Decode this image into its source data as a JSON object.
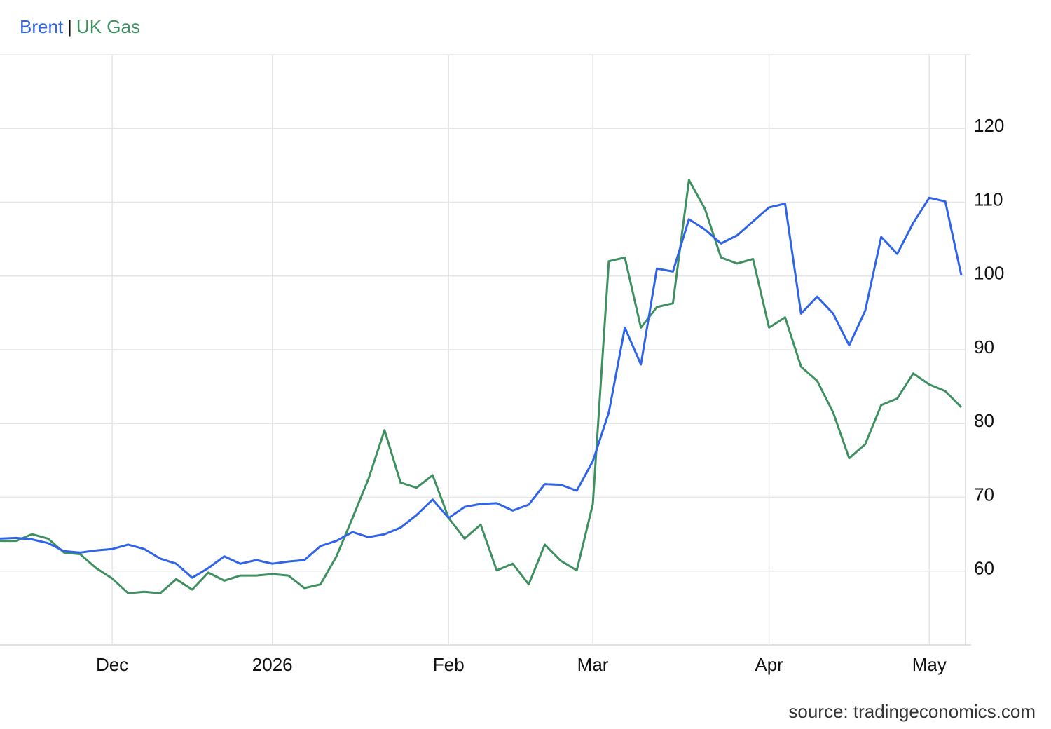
{
  "chart_data": {
    "type": "line",
    "legend_separator": "|",
    "source": "source: tradingeconomics.com",
    "categories": [
      null,
      null,
      null,
      null,
      null,
      null,
      null,
      "Dec",
      null,
      null,
      null,
      null,
      null,
      null,
      null,
      null,
      null,
      "2026",
      null,
      null,
      null,
      null,
      null,
      null,
      null,
      null,
      null,
      null,
      "Feb",
      null,
      null,
      null,
      null,
      null,
      null,
      null,
      null,
      "Mar",
      null,
      null,
      null,
      null,
      null,
      null,
      null,
      null,
      null,
      null,
      "Apr",
      null,
      null,
      null,
      null,
      null,
      null,
      null,
      null,
      null,
      "May",
      null,
      null
    ],
    "series": [
      {
        "name": "Brent",
        "color": "#2f63ea",
        "values": [
          64.4,
          64.5,
          64.3,
          63.8,
          62.7,
          62.5,
          62.8,
          63.0,
          63.6,
          63.0,
          61.7,
          61.0,
          59.1,
          60.4,
          62.0,
          61.0,
          61.5,
          61.0,
          61.3,
          61.5,
          63.4,
          64.1,
          65.3,
          64.6,
          65.0,
          65.9,
          67.6,
          69.7,
          67.2,
          68.7,
          69.1,
          69.2,
          68.2,
          69.0,
          71.8,
          71.7,
          70.9,
          74.9,
          81.5,
          93.0,
          88.0,
          101.0,
          100.6,
          107.7,
          106.3,
          104.4,
          105.5,
          107.4,
          109.3,
          109.8,
          94.9,
          97.2,
          94.9,
          90.6,
          95.3,
          105.3,
          103.0,
          107.2,
          110.6,
          110.1,
          100.1
        ]
      },
      {
        "name": "UK Gas",
        "color": "#3f9060",
        "values": [
          64.1,
          64.1,
          65.0,
          64.4,
          62.5,
          62.3,
          60.4,
          59.0,
          57.0,
          57.2,
          57.0,
          58.9,
          57.5,
          59.8,
          58.7,
          59.4,
          59.4,
          59.6,
          59.4,
          57.7,
          58.2,
          62.0,
          67.2,
          72.5,
          79.1,
          72.0,
          71.3,
          73.0,
          67.2,
          64.4,
          66.3,
          60.1,
          61.0,
          58.2,
          63.6,
          61.4,
          60.1,
          69.1,
          102.0,
          102.5,
          93.0,
          95.8,
          96.3,
          113.0,
          109.1,
          102.5,
          101.7,
          102.3,
          93.0,
          94.4,
          87.7,
          85.8,
          81.5,
          75.3,
          77.2,
          82.5,
          83.4,
          86.8,
          85.3,
          84.4,
          82.2
        ]
      }
    ],
    "ylim": [
      50,
      130
    ],
    "yticks": [
      60,
      70,
      80,
      90,
      100,
      110,
      120
    ],
    "grid": true
  }
}
